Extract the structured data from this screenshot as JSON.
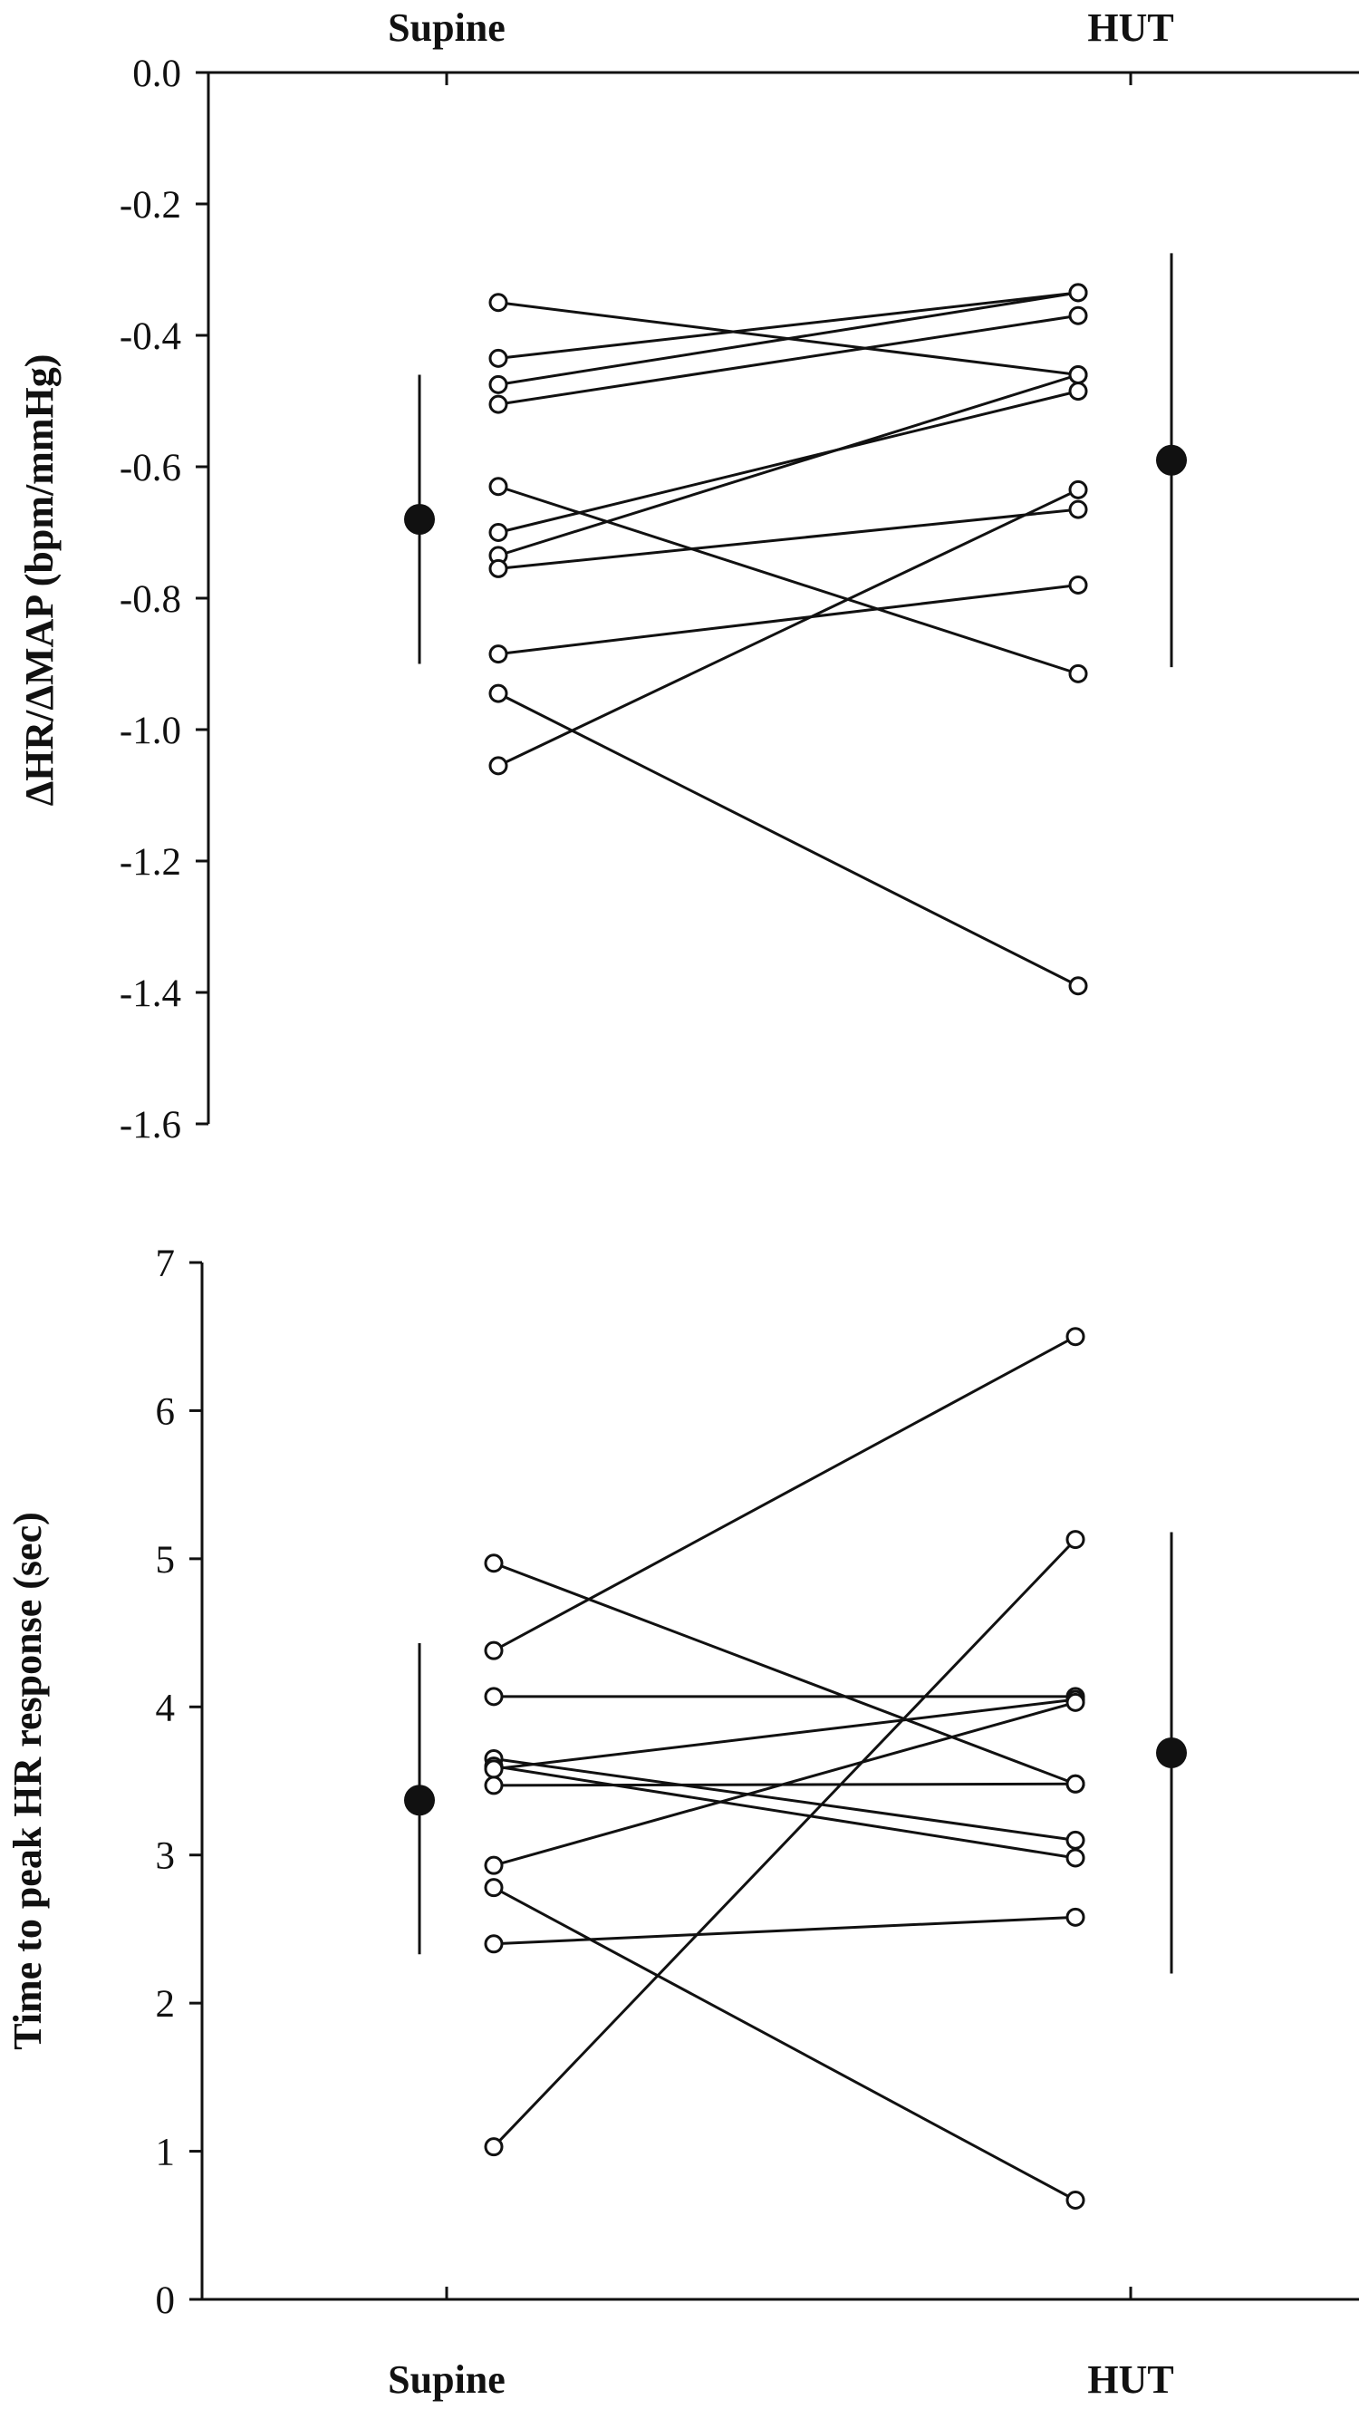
{
  "chart_data": [
    {
      "type": "scatter",
      "ylabel": "ΔHR/ΔMAP (bpm/mmHg)",
      "xlabel": "",
      "categories": [
        "Supine",
        "HUT"
      ],
      "category_axis_position": "top",
      "ylim": [
        -1.6,
        0.0
      ],
      "yticks": [
        "0.0",
        "-0.2",
        "-0.4",
        "-0.6",
        "-0.8",
        "-1.0",
        "-1.2",
        "-1.4",
        "-1.6"
      ],
      "ytick_values": [
        0.0,
        -0.2,
        -0.4,
        -0.6,
        -0.8,
        -1.0,
        -1.2,
        -1.4,
        -1.6
      ],
      "grid": false,
      "pairs": [
        [
          -0.35,
          -0.46
        ],
        [
          -0.435,
          -0.335
        ],
        [
          -0.475,
          -0.335
        ],
        [
          -0.505,
          -0.37
        ],
        [
          -0.63,
          -0.915
        ],
        [
          -0.7,
          -0.485
        ],
        [
          -0.735,
          -0.46
        ],
        [
          -0.755,
          -0.665
        ],
        [
          -0.885,
          -0.78
        ],
        [
          -0.945,
          -1.39
        ],
        [
          -1.055,
          -0.635
        ]
      ],
      "group_means": [
        {
          "category": "Supine",
          "mean": -0.68,
          "lower": -0.9,
          "upper": -0.46
        },
        {
          "category": "HUT",
          "mean": -0.59,
          "lower": -0.905,
          "upper": -0.275
        }
      ]
    },
    {
      "type": "scatter",
      "ylabel": "Time to peak HR response (sec)",
      "xlabel": "",
      "categories": [
        "Supine",
        "HUT"
      ],
      "category_axis_position": "bottom",
      "ylim": [
        0,
        7
      ],
      "yticks": [
        "0",
        "1",
        "2",
        "3",
        "4",
        "5",
        "6",
        "7"
      ],
      "ytick_values": [
        0,
        1,
        2,
        3,
        4,
        5,
        6,
        7
      ],
      "grid": false,
      "pairs": [
        [
          4.97,
          3.48
        ],
        [
          4.38,
          6.5
        ],
        [
          4.07,
          4.07
        ],
        [
          3.65,
          3.1
        ],
        [
          3.6,
          2.98
        ],
        [
          3.58,
          4.05
        ],
        [
          3.47,
          3.48
        ],
        [
          2.93,
          4.03
        ],
        [
          2.78,
          0.67
        ],
        [
          2.4,
          2.58
        ],
        [
          1.03,
          5.13
        ]
      ],
      "group_means": [
        {
          "category": "Supine",
          "mean": 3.37,
          "lower": 2.33,
          "upper": 4.43
        },
        {
          "category": "HUT",
          "mean": 3.69,
          "lower": 2.2,
          "upper": 5.18
        }
      ]
    }
  ]
}
